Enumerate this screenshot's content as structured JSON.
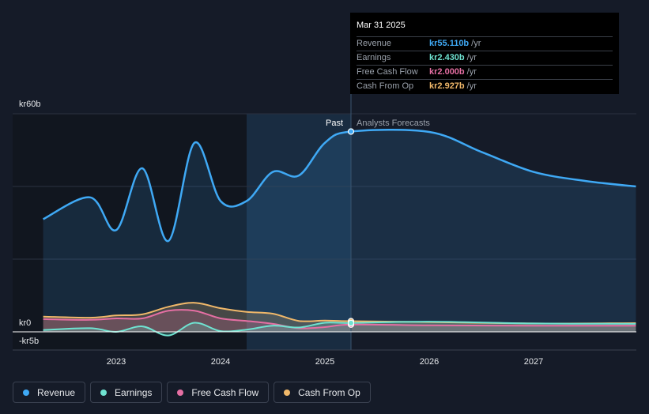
{
  "tooltip": {
    "date": "Mar 31 2025",
    "rows": [
      {
        "name": "Revenue",
        "value": "kr55.110b",
        "unit": "/yr",
        "color": "#3fa9f5"
      },
      {
        "name": "Earnings",
        "value": "kr2.430b",
        "unit": "/yr",
        "color": "#6fe3d1"
      },
      {
        "name": "Free Cash Flow",
        "value": "kr2.000b",
        "unit": "/yr",
        "color": "#e56fa3"
      },
      {
        "name": "Cash From Op",
        "value": "kr2.927b",
        "unit": "/yr",
        "color": "#f0b86a"
      }
    ]
  },
  "labels": {
    "past": "Past",
    "forecast": "Analysts Forecasts"
  },
  "legend": [
    {
      "label": "Revenue",
      "color": "#3fa9f5"
    },
    {
      "label": "Earnings",
      "color": "#6fe3d1"
    },
    {
      "label": "Free Cash Flow",
      "color": "#e56fa3"
    },
    {
      "label": "Cash From Op",
      "color": "#f0b86a"
    }
  ],
  "chart_data": {
    "type": "line",
    "y_tick_labels": [
      "kr60b",
      "kr0",
      "-kr5b"
    ],
    "ylim": [
      -5,
      60
    ],
    "x_tick_labels": [
      "2023",
      "2024",
      "2025",
      "2026",
      "2027"
    ],
    "x_range": [
      2022.3,
      2027.98
    ],
    "past_end": 2025.25,
    "series": [
      {
        "name": "Revenue",
        "color": "#3fa9f5",
        "x": [
          2022.3,
          2022.75,
          2023.0,
          2023.25,
          2023.5,
          2023.75,
          2024.0,
          2024.25,
          2024.5,
          2024.75,
          2025.0,
          2025.25,
          2026.0,
          2026.5,
          2027.0,
          2027.5,
          2027.98
        ],
        "y": [
          31,
          37,
          28,
          45,
          25,
          52,
          36,
          36,
          44,
          43,
          52,
          55.11,
          55,
          49.5,
          44,
          41.5,
          40
        ]
      },
      {
        "name": "Earnings",
        "color": "#6fe3d1",
        "x": [
          2022.3,
          2022.75,
          2023.0,
          2023.25,
          2023.5,
          2023.75,
          2024.0,
          2024.25,
          2024.5,
          2024.75,
          2025.0,
          2025.25,
          2026.0,
          2027.0,
          2027.98
        ],
        "y": [
          0.5,
          1,
          0,
          1.5,
          -1,
          2.5,
          0.2,
          0.6,
          1.7,
          1.2,
          2.5,
          2.43,
          2.8,
          2.3,
          2.2
        ]
      },
      {
        "name": "Free Cash Flow",
        "color": "#e56fa3",
        "x": [
          2022.3,
          2022.75,
          2023.0,
          2023.25,
          2023.5,
          2023.75,
          2024.0,
          2024.25,
          2024.5,
          2024.75,
          2025.0,
          2025.25,
          2026.0,
          2027.0,
          2027.98
        ],
        "y": [
          3.5,
          3.3,
          3.7,
          3.7,
          5.8,
          5.8,
          3.7,
          3,
          2.2,
          1,
          1.3,
          2.0,
          1.8,
          1.7,
          1.7
        ]
      },
      {
        "name": "Cash From Op",
        "color": "#f0b86a",
        "x": [
          2022.3,
          2022.75,
          2023.0,
          2023.25,
          2023.5,
          2023.75,
          2024.0,
          2024.25,
          2024.5,
          2024.75,
          2025.0,
          2025.25,
          2026.0,
          2027.0,
          2027.98
        ],
        "y": [
          4.2,
          3.9,
          4.5,
          4.8,
          6.9,
          8,
          6.5,
          5.5,
          5,
          3,
          3.1,
          2.927,
          2.7,
          2.3,
          2.4
        ]
      }
    ]
  }
}
